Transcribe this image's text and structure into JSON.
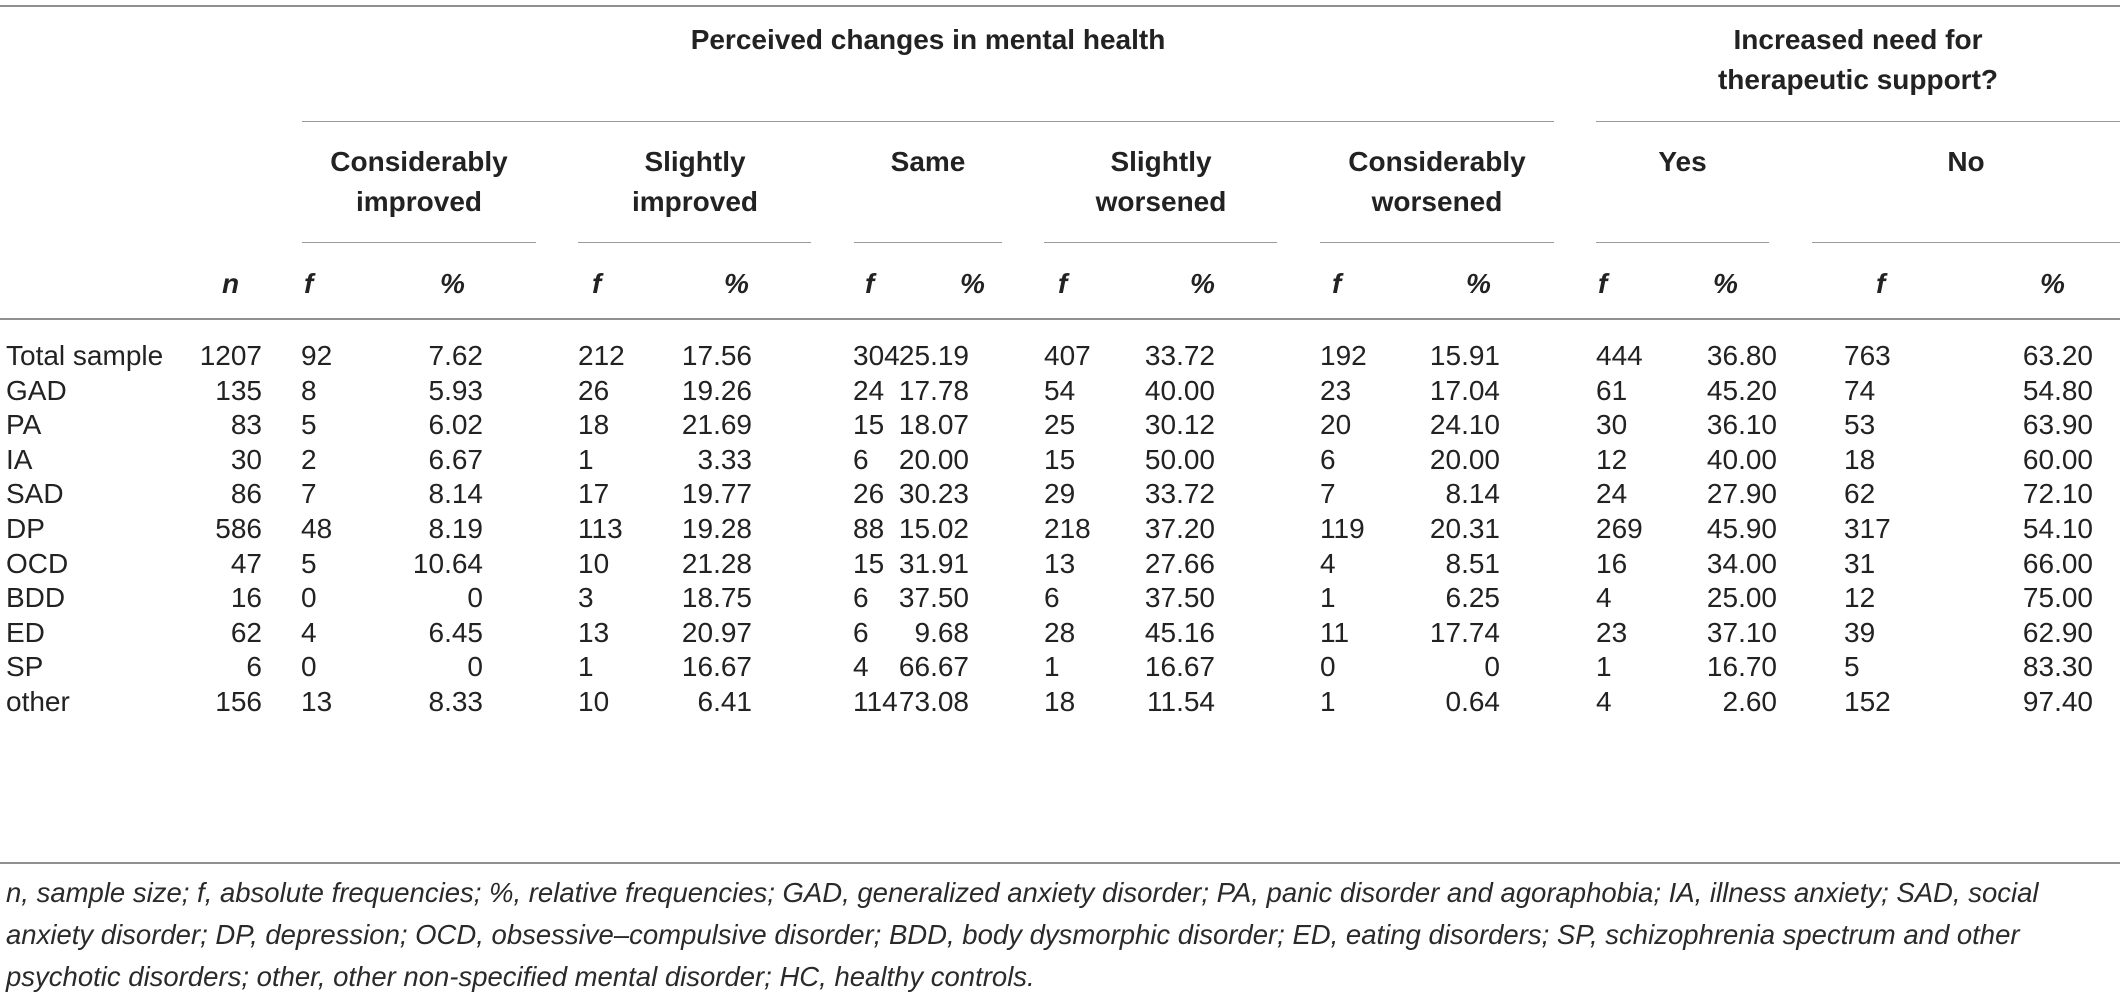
{
  "header": {
    "group_mental_health": "Perceived changes in mental health",
    "group_support_line1": "Increased need for",
    "group_support_line2": "therapeutic support?",
    "categories": [
      {
        "line1": "Considerably",
        "line2": "improved"
      },
      {
        "line1": "Slightly",
        "line2": "improved"
      },
      {
        "line1": "Same",
        "line2": ""
      },
      {
        "line1": "Slightly",
        "line2": "worsened"
      },
      {
        "line1": "Considerably",
        "line2": "worsened"
      },
      {
        "line1": "Yes",
        "line2": ""
      },
      {
        "line1": "No",
        "line2": ""
      }
    ],
    "n_label": "n",
    "f_label": "f",
    "pct_label": "%"
  },
  "rows": [
    {
      "label": "Total sample",
      "n": "1207",
      "v": [
        "92",
        "7.62",
        "212",
        "17.56",
        "304",
        "25.19",
        "407",
        "33.72",
        "192",
        "15.91",
        "444",
        "36.80",
        "763",
        "63.20"
      ]
    },
    {
      "label": "GAD",
      "n": "135",
      "v": [
        "8",
        "5.93",
        "26",
        "19.26",
        "24",
        "17.78",
        "54",
        "40.00",
        "23",
        "17.04",
        "61",
        "45.20",
        "74",
        "54.80"
      ]
    },
    {
      "label": "PA",
      "n": "83",
      "v": [
        "5",
        "6.02",
        "18",
        "21.69",
        "15",
        "18.07",
        "25",
        "30.12",
        "20",
        "24.10",
        "30",
        "36.10",
        "53",
        "63.90"
      ]
    },
    {
      "label": "IA",
      "n": "30",
      "v": [
        "2",
        "6.67",
        "1",
        "3.33",
        "6",
        "20.00",
        "15",
        "50.00",
        "6",
        "20.00",
        "12",
        "40.00",
        "18",
        "60.00"
      ]
    },
    {
      "label": "SAD",
      "n": "86",
      "v": [
        "7",
        "8.14",
        "17",
        "19.77",
        "26",
        "30.23",
        "29",
        "33.72",
        "7",
        "8.14",
        "24",
        "27.90",
        "62",
        "72.10"
      ]
    },
    {
      "label": "DP",
      "n": "586",
      "v": [
        "48",
        "8.19",
        "113",
        "19.28",
        "88",
        "15.02",
        "218",
        "37.20",
        "119",
        "20.31",
        "269",
        "45.90",
        "317",
        "54.10"
      ]
    },
    {
      "label": "OCD",
      "n": "47",
      "v": [
        "5",
        "10.64",
        "10",
        "21.28",
        "15",
        "31.91",
        "13",
        "27.66",
        "4",
        "8.51",
        "16",
        "34.00",
        "31",
        "66.00"
      ]
    },
    {
      "label": "BDD",
      "n": "16",
      "v": [
        "0",
        "0",
        "3",
        "18.75",
        "6",
        "37.50",
        "6",
        "37.50",
        "1",
        "6.25",
        "4",
        "25.00",
        "12",
        "75.00"
      ]
    },
    {
      "label": "ED",
      "n": "62",
      "v": [
        "4",
        "6.45",
        "13",
        "20.97",
        "6",
        "9.68",
        "28",
        "45.16",
        "11",
        "17.74",
        "23",
        "37.10",
        "39",
        "62.90"
      ]
    },
    {
      "label": "SP",
      "n": "6",
      "v": [
        "0",
        "0",
        "1",
        "16.67",
        "4",
        "66.67",
        "1",
        "16.67",
        "0",
        "0",
        "1",
        "16.70",
        "5",
        "83.30"
      ]
    },
    {
      "label": "other",
      "n": "156",
      "v": [
        "13",
        "8.33",
        "10",
        "6.41",
        "114",
        "73.08",
        "18",
        "11.54",
        "1",
        "0.64",
        "4",
        "2.60",
        "152",
        "97.40"
      ]
    }
  ],
  "footnote": "n, sample size; f, absolute frequencies; %, relative frequencies; GAD, generalized anxiety disorder; PA, panic disorder and agoraphobia; IA, illness anxiety; SAD, social anxiety disorder; DP, depression; OCD, obsessive–compulsive disorder; BDD, body dysmorphic disorder; ED, eating disorders; SP, schizophrenia spectrum and other psychotic disorders; other, other non-specified mental disorder; HC, healthy controls."
}
